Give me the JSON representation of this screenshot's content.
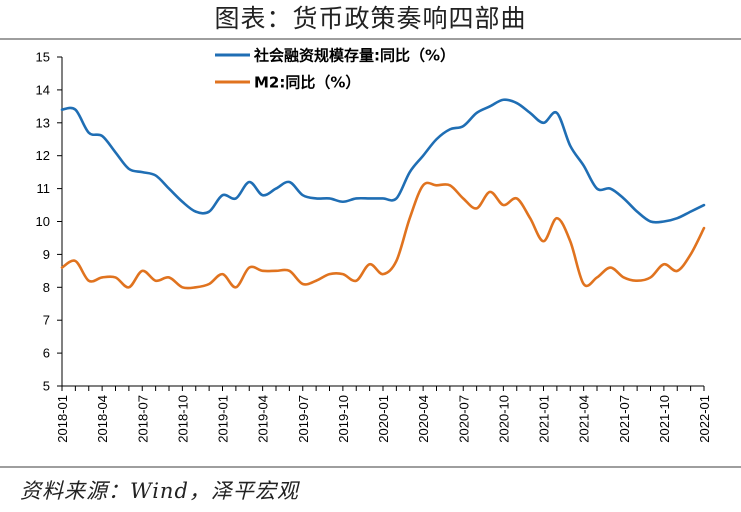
{
  "header": {
    "title": "图表：货币政策奏响四部曲"
  },
  "footer": {
    "source": "资料来源：Wind，泽平宏观"
  },
  "colors": {
    "series_tsf": "#1f6eb4",
    "series_m2": "#e0731f"
  },
  "chart_data": {
    "type": "line",
    "title": "",
    "xlabel": "",
    "ylabel": "",
    "ylim": [
      5,
      15
    ],
    "yticks": [
      5,
      6,
      7,
      8,
      9,
      10,
      11,
      12,
      13,
      14,
      15
    ],
    "xtick_labels": [
      "2018-01",
      "2018-04",
      "2018-07",
      "2018-10",
      "2019-01",
      "2019-04",
      "2019-07",
      "2019-10",
      "2020-01",
      "2020-04",
      "2020-07",
      "2020-10",
      "2021-01",
      "2021-04",
      "2021-07",
      "2021-10",
      "2022-01"
    ],
    "grid": false,
    "legend_position": "top-center",
    "x": [
      "2018-01",
      "2018-02",
      "2018-03",
      "2018-04",
      "2018-05",
      "2018-06",
      "2018-07",
      "2018-08",
      "2018-09",
      "2018-10",
      "2018-11",
      "2018-12",
      "2019-01",
      "2019-02",
      "2019-03",
      "2019-04",
      "2019-05",
      "2019-06",
      "2019-07",
      "2019-08",
      "2019-09",
      "2019-10",
      "2019-11",
      "2019-12",
      "2020-01",
      "2020-02",
      "2020-03",
      "2020-04",
      "2020-05",
      "2020-06",
      "2020-07",
      "2020-08",
      "2020-09",
      "2020-10",
      "2020-11",
      "2020-12",
      "2021-01",
      "2021-02",
      "2021-03",
      "2021-04",
      "2021-05",
      "2021-06",
      "2021-07",
      "2021-08",
      "2021-09",
      "2021-10",
      "2021-11",
      "2021-12",
      "2022-01"
    ],
    "series": [
      {
        "name": "社会融资规模存量:同比（%）",
        "color": "#1f6eb4",
        "values": [
          13.4,
          13.4,
          12.7,
          12.6,
          12.1,
          11.6,
          11.5,
          11.4,
          11.0,
          10.6,
          10.3,
          10.3,
          10.8,
          10.7,
          11.2,
          10.8,
          11.0,
          11.2,
          10.8,
          10.7,
          10.7,
          10.6,
          10.7,
          10.7,
          10.7,
          10.7,
          11.5,
          12.0,
          12.5,
          12.8,
          12.9,
          13.3,
          13.5,
          13.7,
          13.6,
          13.3,
          13.0,
          13.3,
          12.3,
          11.7,
          11.0,
          11.0,
          10.7,
          10.3,
          10.0,
          10.0,
          10.1,
          10.3,
          10.5
        ]
      },
      {
        "name": "M2:同比（%）",
        "color": "#e0731f",
        "values": [
          8.6,
          8.8,
          8.2,
          8.3,
          8.3,
          8.0,
          8.5,
          8.2,
          8.3,
          8.0,
          8.0,
          8.1,
          8.4,
          8.0,
          8.6,
          8.5,
          8.5,
          8.5,
          8.1,
          8.2,
          8.4,
          8.4,
          8.2,
          8.7,
          8.4,
          8.8,
          10.1,
          11.1,
          11.1,
          11.1,
          10.7,
          10.4,
          10.9,
          10.5,
          10.7,
          10.1,
          9.4,
          10.1,
          9.4,
          8.1,
          8.3,
          8.6,
          8.3,
          8.2,
          8.3,
          8.7,
          8.5,
          9.0,
          9.8
        ]
      }
    ]
  }
}
